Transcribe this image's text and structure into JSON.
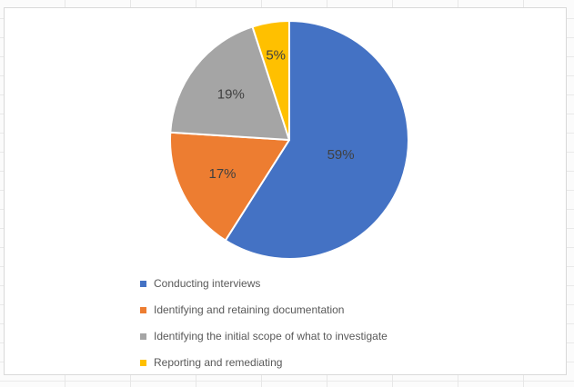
{
  "chart_data": {
    "type": "pie",
    "title": "",
    "slices": [
      {
        "label": "Conducting interviews",
        "value": 59,
        "pct_label": "59%",
        "color": "#4472C4"
      },
      {
        "label": "Identifying and retaining documentation",
        "value": 17,
        "pct_label": "17%",
        "color": "#ED7D31"
      },
      {
        "label": "Identifying the initial scope of what to investigate",
        "value": 19,
        "pct_label": "19%",
        "color": "#A5A5A5"
      },
      {
        "label": "Reporting and remediating",
        "value": 5,
        "pct_label": "5%",
        "color": "#FFC000"
      }
    ],
    "start_angle_deg": 0,
    "direction": "clockwise",
    "legend_position": "bottom-left",
    "separator_color": "#ffffff",
    "label_color": "#404040",
    "label_font_size": 15,
    "label_radius_fractions": [
      0.45,
      0.63,
      0.62,
      0.72
    ]
  }
}
